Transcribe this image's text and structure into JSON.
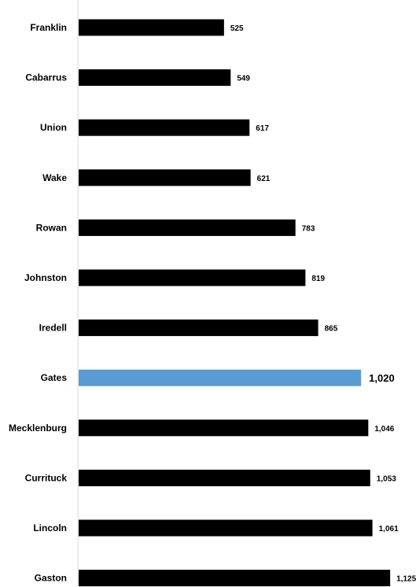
{
  "chart_data": {
    "type": "bar",
    "orientation": "horizontal",
    "title": "",
    "xlabel": "",
    "ylabel": "",
    "categories": [
      "Franklin",
      "Cabarrus",
      "Union",
      "Wake",
      "Rowan",
      "Johnston",
      "Iredell",
      "Gates",
      "Mecklenburg",
      "Currituck",
      "Lincoln",
      "Gaston"
    ],
    "values": [
      525,
      549,
      617,
      621,
      783,
      819,
      865,
      1020,
      1046,
      1053,
      1061,
      1125
    ],
    "value_labels": [
      "525",
      "549",
      "617",
      "621",
      "783",
      "819",
      "865",
      "1,020",
      "1,046",
      "1,053",
      "1,061",
      "1,125"
    ],
    "highlight_category": "Gates",
    "colors": {
      "bar": "#000000",
      "highlight": "#5b9bd5",
      "axis": "#d9d9d9"
    },
    "xlim": [
      0,
      1170
    ],
    "grid": false,
    "legend": "none"
  }
}
